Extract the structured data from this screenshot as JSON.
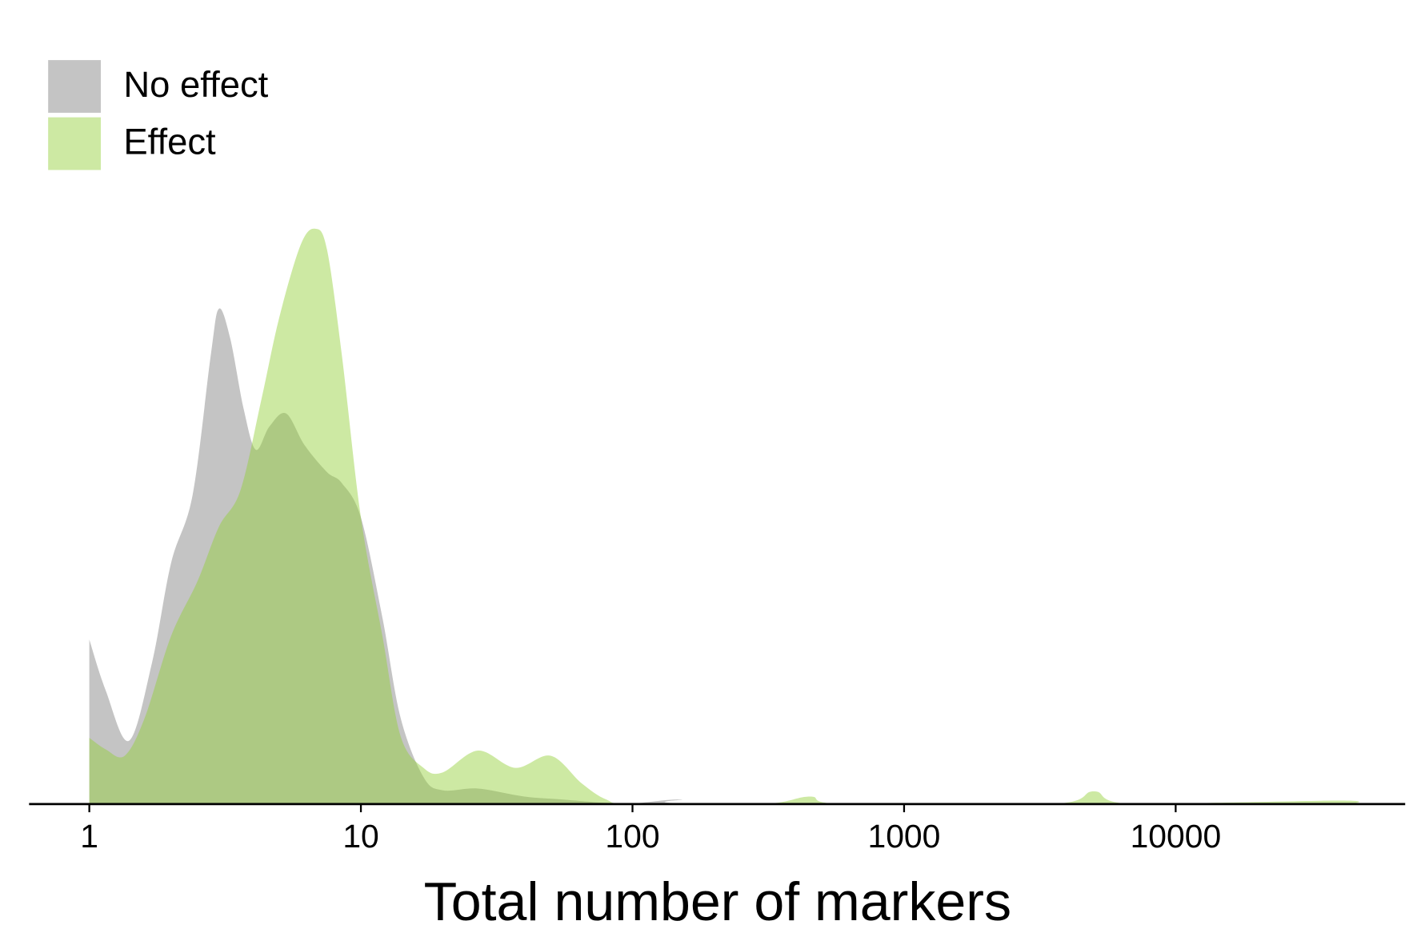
{
  "chart_data": {
    "type": "density",
    "x_label": "Total number of markers",
    "x_log": true,
    "xlim": [
      0.6,
      70000
    ],
    "xticks": [
      1,
      10,
      100,
      1000,
      10000
    ],
    "ylim": [
      0,
      1.2
    ],
    "legend": "top-left",
    "series": [
      {
        "name": "No effect",
        "color": "#c4c4c4",
        "alpha": 1,
        "x": [
          1,
          1.15,
          1.4,
          1.7,
          2.0,
          2.4,
          2.8,
          3.0,
          3.3,
          3.7,
          4.1,
          4.6,
          5.3,
          6.2,
          7.5,
          8.5,
          10,
          12,
          14,
          17,
          20,
          27,
          40,
          55,
          80,
          100,
          150,
          220,
          50000
        ],
        "values": [
          0.286,
          0.197,
          0.11,
          0.245,
          0.419,
          0.537,
          0.78,
          0.861,
          0.81,
          0.687,
          0.616,
          0.656,
          0.679,
          0.624,
          0.577,
          0.558,
          0.498,
          0.324,
          0.15,
          0.047,
          0.024,
          0.027,
          0.013,
          0.008,
          0.002,
          0.001,
          0.008,
          0,
          0
        ]
      },
      {
        "name": "Effect",
        "color": "#92cf36",
        "alpha": 0.46,
        "x": [
          1,
          1.15,
          1.35,
          1.6,
          2.0,
          2.5,
          3.0,
          3.6,
          4.3,
          5.0,
          6.0,
          6.8,
          7.5,
          8.5,
          10,
          12,
          14,
          17,
          20,
          27,
          37,
          50,
          65,
          80,
          100,
          300,
          450,
          600,
          3500,
          5000,
          7000,
          40000,
          45000
        ],
        "values": [
          0.115,
          0.095,
          0.084,
          0.15,
          0.292,
          0.387,
          0.482,
          0.545,
          0.703,
          0.845,
          0.972,
          1.0,
          0.964,
          0.782,
          0.498,
          0.292,
          0.118,
          0.063,
          0.055,
          0.093,
          0.063,
          0.084,
          0.036,
          0.008,
          0,
          0,
          0.013,
          0,
          0,
          0.022,
          0,
          0.006,
          0
        ]
      }
    ]
  }
}
